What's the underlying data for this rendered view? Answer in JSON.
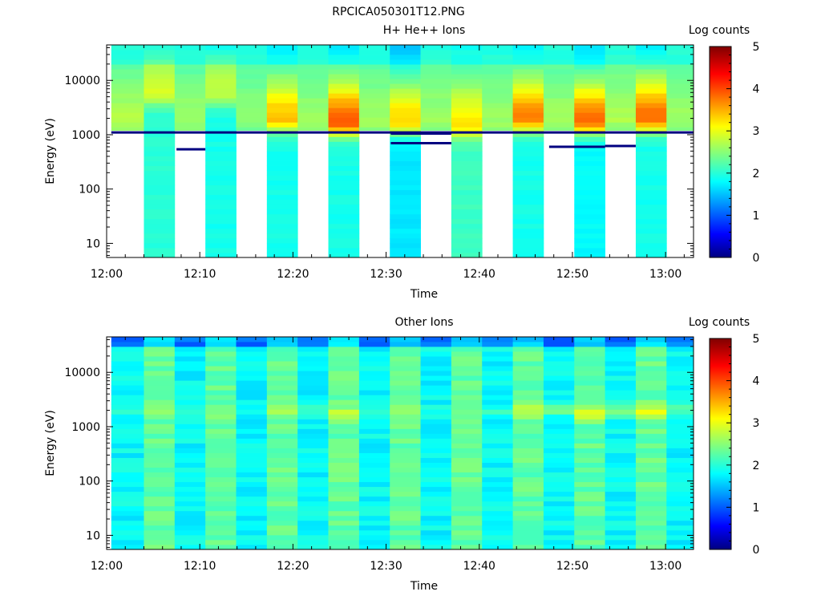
{
  "figure": {
    "title": "RPCICA050301T12.PNG"
  },
  "colorbar": {
    "label": "Log counts",
    "ticks": [
      "0",
      "1",
      "2",
      "3",
      "4",
      "5"
    ],
    "range": [
      0,
      5
    ],
    "colormap": "jet"
  },
  "chart_data": [
    {
      "type": "heatmap",
      "title": "H+ He++ Ions",
      "xlabel": "Time",
      "ylabel": "Energy (eV)",
      "x_ticks": [
        "12:00",
        "12:10",
        "12:20",
        "12:30",
        "12:40",
        "12:50",
        "13:00"
      ],
      "xlim_minutes": [
        0,
        63
      ],
      "y_ticks": [
        "10",
        "100",
        "1000",
        "10000"
      ],
      "yscale": "log",
      "ylim": [
        5.5,
        45000
      ],
      "value_label": "Log counts",
      "vrange": [
        0,
        5
      ],
      "columns": [
        {
          "t_start": 0.5,
          "t_end": 4.0,
          "e_min": 1200,
          "peak_energy": 1800,
          "peak_value": 2.7,
          "low_value": 2.2
        },
        {
          "t_start": 4.0,
          "t_end": 7.3,
          "e_min": 5.5,
          "peak_energy": 6000,
          "peak_value": 2.9,
          "low_value": 2.0
        },
        {
          "t_start": 7.3,
          "t_end": 10.6,
          "e_min": 1200,
          "peak_energy": 1800,
          "peak_value": 2.6,
          "low_value": 2.2
        },
        {
          "t_start": 10.6,
          "t_end": 13.9,
          "e_min": 5.5,
          "peak_energy": 6000,
          "peak_value": 2.8,
          "low_value": 1.9
        },
        {
          "t_start": 13.9,
          "t_end": 17.2,
          "e_min": 1200,
          "peak_energy": 2000,
          "peak_value": 2.5,
          "low_value": 2.2
        },
        {
          "t_start": 17.2,
          "t_end": 20.5,
          "e_min": 5.5,
          "peak_energy": 2000,
          "peak_value": 3.4,
          "low_value": 1.9
        },
        {
          "t_start": 20.5,
          "t_end": 23.8,
          "e_min": 1200,
          "peak_energy": 1800,
          "peak_value": 2.6,
          "low_value": 2.2
        },
        {
          "t_start": 23.8,
          "t_end": 27.1,
          "e_min": 5.5,
          "peak_energy": 1700,
          "peak_value": 3.9,
          "low_value": 1.9
        },
        {
          "t_start": 27.1,
          "t_end": 30.4,
          "e_min": 1200,
          "peak_energy": 1800,
          "peak_value": 2.6,
          "low_value": 2.2
        },
        {
          "t_start": 30.4,
          "t_end": 33.7,
          "e_min": 5.5,
          "peak_energy": 1800,
          "peak_value": 3.3,
          "low_value": 1.7
        },
        {
          "t_start": 33.7,
          "t_end": 37.0,
          "e_min": 1200,
          "peak_energy": 1800,
          "peak_value": 2.6,
          "low_value": 2.2
        },
        {
          "t_start": 37.0,
          "t_end": 40.3,
          "e_min": 5.5,
          "peak_energy": 1500,
          "peak_value": 3.2,
          "low_value": 2.1
        },
        {
          "t_start": 40.3,
          "t_end": 43.6,
          "e_min": 1200,
          "peak_energy": 1800,
          "peak_value": 2.6,
          "low_value": 2.2
        },
        {
          "t_start": 43.6,
          "t_end": 46.9,
          "e_min": 5.5,
          "peak_energy": 2000,
          "peak_value": 3.7,
          "low_value": 1.9
        },
        {
          "t_start": 46.9,
          "t_end": 50.2,
          "e_min": 1200,
          "peak_energy": 1800,
          "peak_value": 2.6,
          "low_value": 2.2
        },
        {
          "t_start": 50.2,
          "t_end": 53.5,
          "e_min": 5.5,
          "peak_energy": 1800,
          "peak_value": 3.8,
          "low_value": 1.8
        },
        {
          "t_start": 53.5,
          "t_end": 56.8,
          "e_min": 1200,
          "peak_energy": 2000,
          "peak_value": 2.7,
          "low_value": 2.2
        },
        {
          "t_start": 56.8,
          "t_end": 60.1,
          "e_min": 5.5,
          "peak_energy": 2000,
          "peak_value": 3.8,
          "low_value": 1.9
        },
        {
          "t_start": 60.1,
          "t_end": 63.0,
          "e_min": 1200,
          "peak_energy": 1800,
          "peak_value": 2.6,
          "low_value": 2.2
        }
      ],
      "markers": [
        {
          "t_start": 0.5,
          "t_end": 63.0,
          "energy": 1100
        },
        {
          "t_start": 7.5,
          "t_end": 10.6,
          "energy": 540
        },
        {
          "t_start": 30.5,
          "t_end": 37.0,
          "energy": 700
        },
        {
          "t_start": 30.5,
          "t_end": 37.0,
          "energy": 1050
        },
        {
          "t_start": 47.5,
          "t_end": 53.5,
          "energy": 600
        },
        {
          "t_start": 53.5,
          "t_end": 56.8,
          "energy": 620
        }
      ]
    },
    {
      "type": "heatmap",
      "title": "Other Ions",
      "xlabel": "Time",
      "ylabel": "Energy (eV)",
      "x_ticks": [
        "12:00",
        "12:10",
        "12:20",
        "12:30",
        "12:40",
        "12:50",
        "13:00"
      ],
      "xlim_minutes": [
        0,
        63
      ],
      "y_ticks": [
        "10",
        "100",
        "1000",
        "10000"
      ],
      "yscale": "log",
      "ylim": [
        5.5,
        45000
      ],
      "value_label": "Log counts",
      "vrange": [
        0,
        5
      ],
      "columns": [
        {
          "t_start": 0.5,
          "t_end": 4.0,
          "base_value": 1.8,
          "peak_energy": 2000,
          "peak_value": 1.9
        },
        {
          "t_start": 4.0,
          "t_end": 7.3,
          "base_value": 2.3,
          "peak_energy": 2000,
          "peak_value": 2.4
        },
        {
          "t_start": 7.3,
          "t_end": 10.6,
          "base_value": 1.8,
          "peak_energy": 2000,
          "peak_value": 1.9
        },
        {
          "t_start": 10.6,
          "t_end": 13.9,
          "base_value": 2.3,
          "peak_energy": 2000,
          "peak_value": 2.4
        },
        {
          "t_start": 13.9,
          "t_end": 17.2,
          "base_value": 1.8,
          "peak_energy": 2000,
          "peak_value": 1.9
        },
        {
          "t_start": 17.2,
          "t_end": 20.5,
          "base_value": 2.3,
          "peak_energy": 2200,
          "peak_value": 2.6
        },
        {
          "t_start": 20.5,
          "t_end": 23.8,
          "base_value": 1.8,
          "peak_energy": 2000,
          "peak_value": 2.0
        },
        {
          "t_start": 23.8,
          "t_end": 27.1,
          "base_value": 2.3,
          "peak_energy": 1700,
          "peak_value": 2.9
        },
        {
          "t_start": 27.1,
          "t_end": 30.4,
          "base_value": 1.8,
          "peak_energy": 2000,
          "peak_value": 2.0
        },
        {
          "t_start": 30.4,
          "t_end": 33.7,
          "base_value": 2.3,
          "peak_energy": 1800,
          "peak_value": 2.6
        },
        {
          "t_start": 33.7,
          "t_end": 37.0,
          "base_value": 1.8,
          "peak_energy": 2000,
          "peak_value": 1.9
        },
        {
          "t_start": 37.0,
          "t_end": 40.3,
          "base_value": 2.3,
          "peak_energy": 2000,
          "peak_value": 2.5
        },
        {
          "t_start": 40.3,
          "t_end": 43.6,
          "base_value": 1.8,
          "peak_energy": 2000,
          "peak_value": 2.0
        },
        {
          "t_start": 43.6,
          "t_end": 46.9,
          "base_value": 2.3,
          "peak_energy": 2100,
          "peak_value": 2.9
        },
        {
          "t_start": 46.9,
          "t_end": 50.2,
          "base_value": 1.8,
          "peak_energy": 2000,
          "peak_value": 2.3
        },
        {
          "t_start": 50.2,
          "t_end": 53.5,
          "base_value": 2.3,
          "peak_energy": 1800,
          "peak_value": 2.9
        },
        {
          "t_start": 53.5,
          "t_end": 56.8,
          "base_value": 1.8,
          "peak_energy": 2000,
          "peak_value": 2.3
        },
        {
          "t_start": 56.8,
          "t_end": 60.1,
          "base_value": 2.3,
          "peak_energy": 2000,
          "peak_value": 3.0
        },
        {
          "t_start": 60.1,
          "t_end": 63.0,
          "base_value": 1.8,
          "peak_energy": 2000,
          "peak_value": 2.2
        }
      ]
    }
  ]
}
